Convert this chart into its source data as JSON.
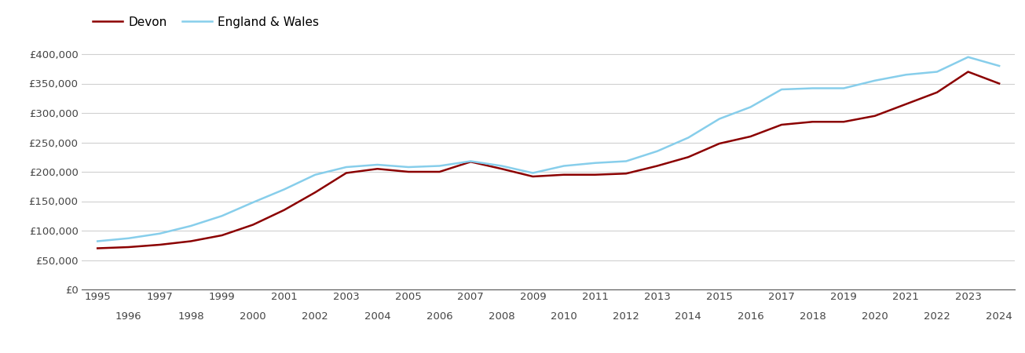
{
  "devon": {
    "years": [
      1995,
      1996,
      1997,
      1998,
      1999,
      2000,
      2001,
      2002,
      2003,
      2004,
      2005,
      2006,
      2007,
      2008,
      2009,
      2010,
      2011,
      2012,
      2013,
      2014,
      2015,
      2016,
      2017,
      2018,
      2019,
      2020,
      2021,
      2022,
      2023,
      2024
    ],
    "values": [
      70000,
      72000,
      76000,
      82000,
      92000,
      110000,
      135000,
      165000,
      198000,
      205000,
      200000,
      200000,
      217000,
      205000,
      192000,
      195000,
      195000,
      197000,
      210000,
      225000,
      248000,
      260000,
      280000,
      285000,
      285000,
      295000,
      315000,
      335000,
      370000,
      350000
    ]
  },
  "england_wales": {
    "years": [
      1995,
      1996,
      1997,
      1998,
      1999,
      2000,
      2001,
      2002,
      2003,
      2004,
      2005,
      2006,
      2007,
      2008,
      2009,
      2010,
      2011,
      2012,
      2013,
      2014,
      2015,
      2016,
      2017,
      2018,
      2019,
      2020,
      2021,
      2022,
      2023,
      2024
    ],
    "values": [
      82000,
      87000,
      95000,
      108000,
      125000,
      148000,
      170000,
      195000,
      208000,
      212000,
      208000,
      210000,
      218000,
      210000,
      198000,
      210000,
      215000,
      218000,
      235000,
      258000,
      290000,
      310000,
      340000,
      342000,
      342000,
      355000,
      365000,
      370000,
      395000,
      380000
    ]
  },
  "devon_color": "#8B0000",
  "england_wales_color": "#87CEEB",
  "line_width": 1.8,
  "ylim": [
    0,
    420000
  ],
  "yticks": [
    0,
    50000,
    100000,
    150000,
    200000,
    250000,
    300000,
    350000,
    400000
  ],
  "ytick_labels": [
    "£0",
    "£50,000",
    "£100,000",
    "£150,000",
    "£200,000",
    "£250,000",
    "£300,000",
    "£350,000",
    "£400,000"
  ],
  "xtick_odd": [
    1995,
    1997,
    1999,
    2001,
    2003,
    2005,
    2007,
    2009,
    2011,
    2013,
    2015,
    2017,
    2019,
    2021,
    2023
  ],
  "xtick_even": [
    1996,
    1998,
    2000,
    2002,
    2004,
    2006,
    2008,
    2010,
    2012,
    2014,
    2016,
    2018,
    2020,
    2022,
    2024
  ],
  "legend_labels": [
    "Devon",
    "England & Wales"
  ],
  "background_color": "#ffffff",
  "grid_color": "#d0d0d0"
}
